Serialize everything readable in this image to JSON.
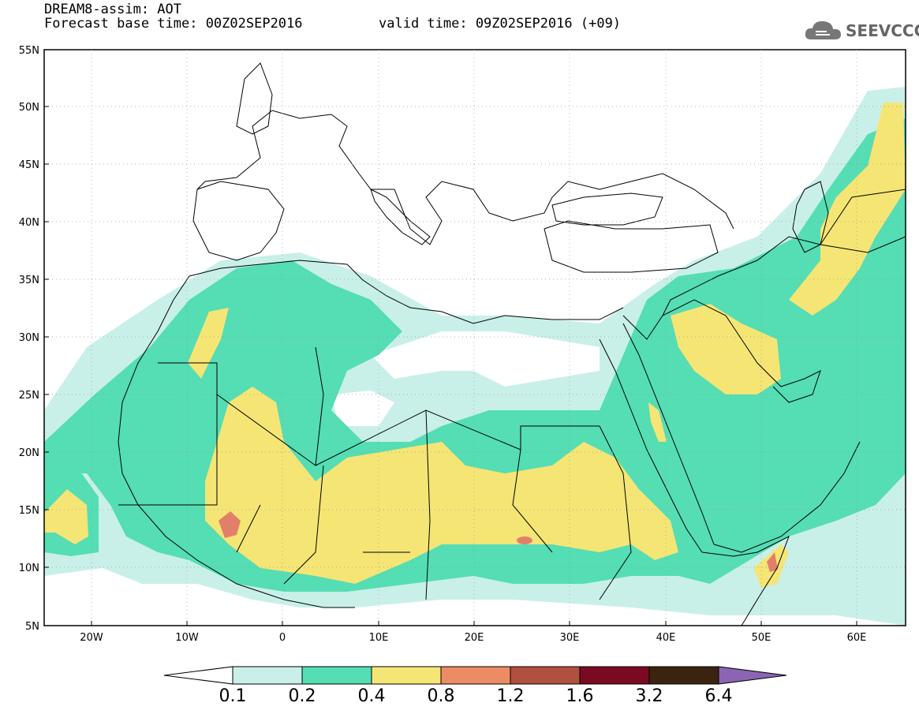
{
  "header": {
    "line1": "DREAM8-assim: AOT",
    "line2": "Forecast base time: 00Z02SEP2016",
    "line3": "valid time: 09Z02SEP2016 (+09)"
  },
  "logo": {
    "text": "SEEVCCC",
    "icon": "cloud-icon"
  },
  "axes": {
    "lat_labels": [
      "55N",
      "50N",
      "45N",
      "40N",
      "35N",
      "30N",
      "25N",
      "20N",
      "15N",
      "10N",
      "5N"
    ],
    "lon_labels": [
      "20W",
      "10W",
      "0",
      "10E",
      "20E",
      "30E",
      "40E",
      "50E",
      "60E"
    ],
    "lon_range": [
      -25,
      65
    ],
    "lat_range": [
      5,
      55
    ]
  },
  "colorbar": {
    "labels": [
      "0.1",
      "0.2",
      "0.4",
      "0.8",
      "1.2",
      "1.6",
      "3.2",
      "6.4"
    ],
    "colors": [
      "#ffffff",
      "#c8f0e8",
      "#55ddb4",
      "#f5e575",
      "#ec8c64",
      "#b0503e",
      "#7a0a22",
      "#3a2410",
      "#8c64b4"
    ]
  },
  "map_colors": {
    "c01": "#c8f0e8",
    "c02": "#55ddb4",
    "c04": "#f5e575",
    "c08": "#e0806a",
    "c12": "#b0503e"
  }
}
